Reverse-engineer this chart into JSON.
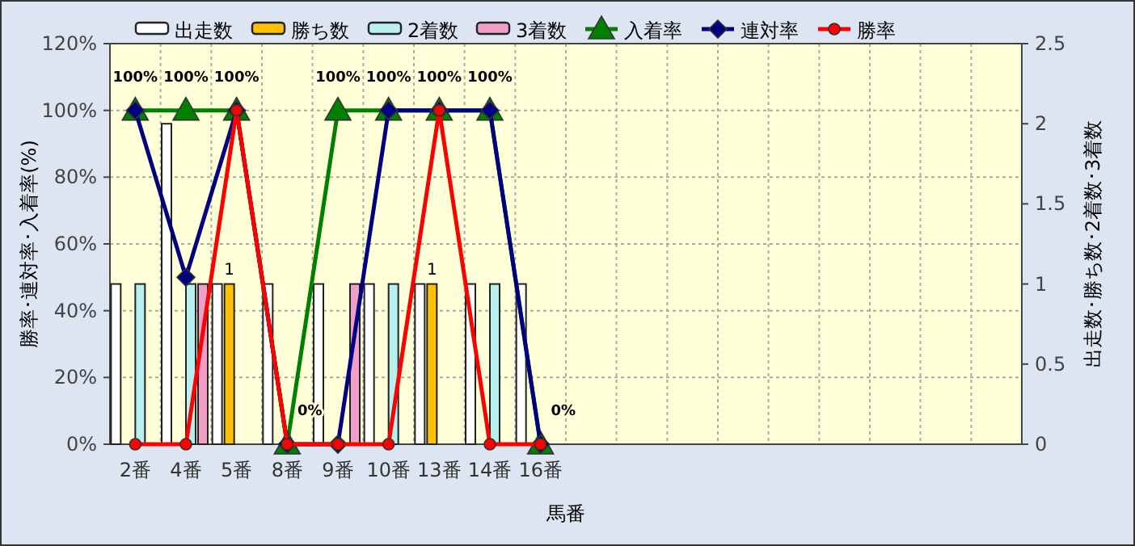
{
  "chart_data": {
    "type": "bar",
    "xlabel": "馬番",
    "ylabel": "勝率･連対率･入着率(%)",
    "y2label": "出走数･勝ち数･2着数･3着数",
    "categories": [
      "2番",
      "4番",
      "5番",
      "8番",
      "9番",
      "10番",
      "13番",
      "14番",
      "16番",
      null,
      null,
      null,
      null,
      null,
      null,
      null,
      null,
      null
    ],
    "series": [
      {
        "name": "出走数",
        "axis": "y2",
        "color": "#ffffff",
        "values": [
          1,
          2,
          1,
          1,
          1,
          1,
          1,
          1,
          1,
          null,
          null,
          null,
          null,
          null,
          null,
          null,
          null,
          null
        ]
      },
      {
        "name": "勝ち数",
        "axis": "y2",
        "color": "#ffc000",
        "values": [
          0,
          0,
          1,
          0,
          0,
          0,
          1,
          0,
          0,
          null,
          null,
          null,
          null,
          null,
          null,
          null,
          null,
          null
        ],
        "value_labels": [
          null,
          null,
          "1",
          null,
          null,
          null,
          "1",
          null,
          null,
          null,
          null,
          null,
          null,
          null,
          null,
          null,
          null,
          null
        ]
      },
      {
        "name": "2着数",
        "axis": "y2",
        "color": "#b8f0f0",
        "values": [
          1,
          1,
          0,
          0,
          0,
          1,
          0,
          1,
          0,
          null,
          null,
          null,
          null,
          null,
          null,
          null,
          null,
          null
        ]
      },
      {
        "name": "3着数",
        "axis": "y2",
        "color": "#f0a0c8",
        "values": [
          0,
          1,
          0,
          0,
          1,
          0,
          0,
          0,
          0,
          null,
          null,
          null,
          null,
          null,
          null,
          null,
          null,
          null
        ]
      },
      {
        "name": "入着率",
        "type": "line",
        "color": "#008000",
        "marker": "triangle",
        "values": [
          100,
          100,
          100,
          0,
          100,
          100,
          100,
          100,
          0,
          null,
          null,
          null,
          null,
          null,
          null,
          null,
          null,
          null
        ],
        "value_labels": [
          "100%",
          "100%",
          "100%",
          "0%",
          "100%",
          "100%",
          "100%",
          "100%",
          "0%",
          null,
          null,
          null,
          null,
          null,
          null,
          null,
          null,
          null
        ]
      },
      {
        "name": "連対率",
        "type": "line",
        "color": "#000080",
        "marker": "diamond",
        "values": [
          100,
          50,
          100,
          0,
          0,
          100,
          100,
          100,
          0,
          null,
          null,
          null,
          null,
          null,
          null,
          null,
          null,
          null
        ]
      },
      {
        "name": "勝率",
        "type": "line",
        "color": "#ff0000",
        "marker": "circle",
        "values": [
          0,
          0,
          100,
          0,
          0,
          0,
          100,
          0,
          0,
          null,
          null,
          null,
          null,
          null,
          null,
          null,
          null,
          null
        ]
      }
    ],
    "ylim": [
      0,
      120
    ],
    "yticks": [
      {
        "value": 0,
        "label": "0%"
      },
      {
        "value": 20,
        "label": "20%"
      },
      {
        "value": 40,
        "label": "40%"
      },
      {
        "value": 60,
        "label": "60%"
      },
      {
        "value": 80,
        "label": "80%"
      },
      {
        "value": 100,
        "label": "100%"
      },
      {
        "value": 120,
        "label": "120%"
      }
    ],
    "y2lim": [
      0,
      2.5
    ],
    "y2ticks": [
      0,
      0.5,
      1,
      1.5,
      2,
      2.5
    ],
    "grid": true,
    "legend": "top"
  }
}
